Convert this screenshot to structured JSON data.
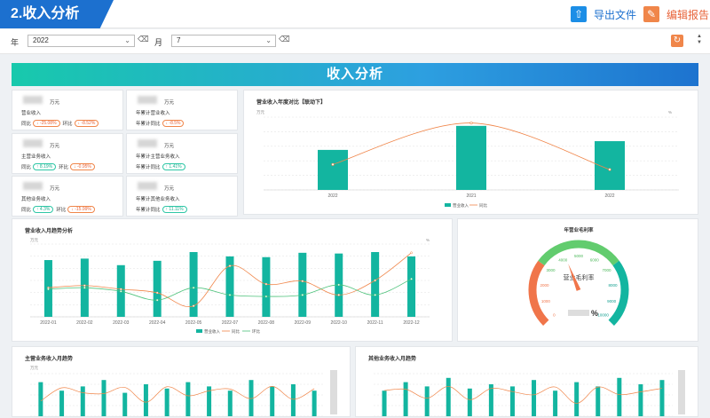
{
  "header": {
    "title": "2.收入分析",
    "export_label": "导出文件",
    "edit_label": "编辑报告"
  },
  "filters": {
    "year_label": "年",
    "year_value": "2022",
    "month_label": "月",
    "month_value": "7"
  },
  "banner": {
    "title": "收入分析"
  },
  "kpis": [
    {
      "unit": "万元",
      "name": "营业收入",
      "yoy_label": "同比",
      "yoy": "↓ -25.08%",
      "yoy_dir": "down",
      "mom_label": "环比",
      "mom": "↓ -8.52%",
      "mom_dir": "down"
    },
    {
      "unit": "万元",
      "name": "年累计营业收入",
      "yoy_label": "年累计同比",
      "yoy": "↓ -8.5%",
      "yoy_dir": "down"
    },
    {
      "unit": "万元",
      "name": "主营业务收入",
      "yoy_label": "同比",
      "yoy": "↑ 8.19%",
      "yoy_dir": "up",
      "mom_label": "环比",
      "mom": "↓ -0.95%",
      "mom_dir": "down"
    },
    {
      "unit": "万元",
      "name": "年累计主营业务收入",
      "yoy_label": "年累计同比",
      "yoy": "↑ 1.41%",
      "yoy_dir": "up"
    },
    {
      "unit": "万元",
      "name": "其他业务收入",
      "yoy_label": "同比",
      "yoy": "↑ 4.3%",
      "yoy_dir": "up",
      "mom_label": "环比",
      "mom": "↓ -15.99%",
      "mom_dir": "down"
    },
    {
      "unit": "万元",
      "name": "年累计其他业务收入",
      "yoy_label": "年累计同比",
      "yoy": "↑ 11.11%",
      "yoy_dir": "up"
    }
  ],
  "colors": {
    "bar": "#13b5a0",
    "yoy_line": "#f0864a",
    "mom_line": "#4cc27a",
    "brand": "#1c70cf"
  },
  "chart_data": [
    {
      "type": "bar",
      "title": "营业收入年度对比【联动下】",
      "ylabel": "万元",
      "y2label": "%",
      "categories": [
        "2022",
        "2021",
        "2022"
      ],
      "series": [
        {
          "name": "营业收入",
          "values": [
            0.55,
            0.88,
            0.67
          ]
        },
        {
          "name": "同比",
          "values": [
            0.35,
            0.92,
            0.28
          ]
        }
      ]
    },
    {
      "type": "bar",
      "title": "营业收入月趋势分析",
      "ylabel": "万元",
      "y2label": "%",
      "categories": [
        "2022-01",
        "2022-02",
        "2022-03",
        "2022-04",
        "2022-05",
        "2022-07",
        "2022-08",
        "2022-09",
        "2022-10",
        "2022-11",
        "2022-12"
      ],
      "series": [
        {
          "name": "营业收入",
          "values": [
            0.78,
            0.8,
            0.71,
            0.77,
            0.89,
            0.83,
            0.82,
            0.88,
            0.87,
            0.89,
            0.83
          ]
        },
        {
          "name": "同比",
          "values": [
            0.4,
            0.43,
            0.38,
            0.33,
            0.15,
            0.7,
            0.45,
            0.49,
            0.3,
            0.5,
            0.88
          ]
        },
        {
          "name": "环比",
          "values": [
            0.38,
            0.4,
            0.35,
            0.23,
            0.4,
            0.3,
            0.28,
            0.3,
            0.44,
            0.3,
            0.52
          ]
        }
      ]
    },
    {
      "type": "gauge",
      "title": "年营业毛利率",
      "center_label": "营业毛利率",
      "unit": "%",
      "min": 0,
      "max": 10000,
      "ticks": [
        "0",
        "1000",
        "2000",
        "3000",
        "4000",
        "5000",
        "6000",
        "7000",
        "8000",
        "9000",
        "10000"
      ],
      "value": 4200
    },
    {
      "type": "bar",
      "title": "主营业务收入月趋势",
      "ylabel": "万元",
      "series": [
        {
          "name": "主营业务收入",
          "values": [
            0.8,
            0.6,
            0.7,
            0.85,
            0.55,
            0.75,
            0.65,
            0.8,
            0.7,
            0.6,
            0.85,
            0.7,
            0.75,
            0.6
          ]
        }
      ]
    },
    {
      "type": "bar",
      "title": "其他业务收入月趋势",
      "series": [
        {
          "name": "其他业务收入",
          "values": [
            0.6,
            0.8,
            0.7,
            0.9,
            0.65,
            0.75,
            0.7,
            0.85,
            0.6,
            0.8,
            0.7,
            0.9,
            0.75,
            0.85
          ]
        }
      ]
    }
  ]
}
